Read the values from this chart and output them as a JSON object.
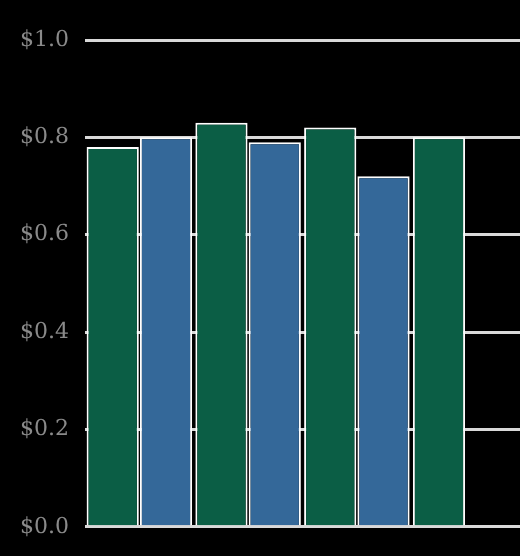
{
  "chart_data": {
    "type": "bar",
    "categories": [
      null,
      null,
      null,
      null
    ],
    "series": [
      {
        "color": "#0b5e45",
        "values": [
          0.78,
          0.83,
          0.82,
          0.8
        ]
      },
      {
        "color": "#346899",
        "values": [
          0.8,
          0.79,
          0.72,
          null
        ]
      }
    ],
    "ylim": [
      0,
      1
    ],
    "yticks": [
      {
        "value": 0,
        "label": "$0.0"
      },
      {
        "value": 0.2,
        "label": "$0.2"
      },
      {
        "value": 0.4,
        "label": "$0.4"
      },
      {
        "value": 0.6,
        "label": "$0.6"
      },
      {
        "value": 0.8,
        "label": "$0.8"
      },
      {
        "value": 1,
        "label": "$1.0"
      }
    ],
    "grid": "y",
    "legend": false
  }
}
